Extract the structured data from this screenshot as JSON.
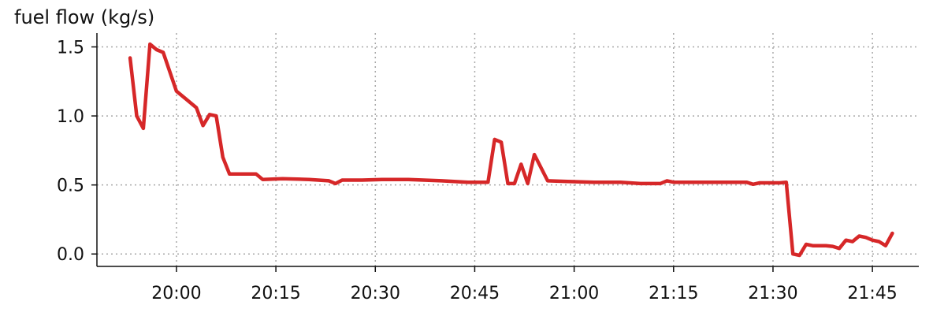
{
  "chart_data": {
    "type": "line",
    "title": "",
    "xlabel": "",
    "ylabel": "fuel flow (kg/s)",
    "xlim": [
      "19:48",
      "21:52"
    ],
    "ylim": [
      -0.09,
      1.6
    ],
    "grid": true,
    "legend": "none",
    "x_ticks": [
      "20:00",
      "20:15",
      "20:30",
      "20:45",
      "21:00",
      "21:15",
      "21:30",
      "21:45"
    ],
    "y_ticks": [
      "0.0",
      "0.5",
      "1.0",
      "1.5"
    ],
    "series": [
      {
        "color": "#d62728",
        "x": [
          "19:53",
          "19:54",
          "19:55",
          "19:56",
          "19:57",
          "19:58",
          "20:00",
          "20:03",
          "20:04",
          "20:05",
          "20:06",
          "20:07",
          "20:08",
          "20:10",
          "20:11",
          "20:12",
          "20:13",
          "20:16",
          "20:20",
          "20:23",
          "20:24",
          "20:25",
          "20:28",
          "20:31",
          "20:35",
          "20:40",
          "20:44",
          "20:46",
          "20:47",
          "20:48",
          "20:49",
          "20:50",
          "20:51",
          "20:52",
          "20:53",
          "20:54",
          "20:56",
          "20:59",
          "21:03",
          "21:07",
          "21:10",
          "21:13",
          "21:14",
          "21:15",
          "21:18",
          "21:21",
          "21:24",
          "21:26",
          "21:27",
          "21:28",
          "21:31",
          "21:32",
          "21:33",
          "21:34",
          "21:35",
          "21:36",
          "21:38",
          "21:39",
          "21:40",
          "21:41",
          "21:42",
          "21:43",
          "21:44",
          "21:45",
          "21:46",
          "21:47",
          "21:48"
        ],
        "y": [
          1.42,
          1.0,
          0.91,
          1.52,
          1.48,
          1.46,
          1.18,
          1.06,
          0.93,
          1.01,
          1.0,
          0.7,
          0.58,
          0.58,
          0.58,
          0.58,
          0.54,
          0.545,
          0.54,
          0.53,
          0.51,
          0.535,
          0.535,
          0.54,
          0.54,
          0.53,
          0.52,
          0.52,
          0.52,
          0.83,
          0.81,
          0.51,
          0.51,
          0.65,
          0.51,
          0.72,
          0.53,
          0.525,
          0.52,
          0.52,
          0.51,
          0.51,
          0.53,
          0.52,
          0.52,
          0.52,
          0.52,
          0.52,
          0.505,
          0.515,
          0.515,
          0.52,
          0.0,
          -0.01,
          0.07,
          0.06,
          0.06,
          0.055,
          0.04,
          0.1,
          0.09,
          0.13,
          0.12,
          0.1,
          0.09,
          0.06,
          0.15
        ]
      }
    ]
  }
}
